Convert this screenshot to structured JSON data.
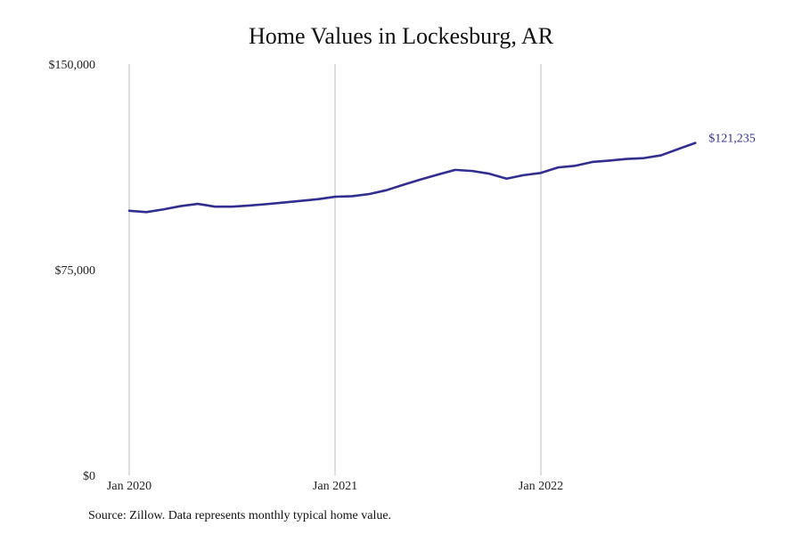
{
  "title": "Home Values in Lockesburg, AR",
  "source": "Source: Zillow. Data represents monthly typical home value.",
  "chart_data": {
    "type": "line",
    "title": "Home Values in Lockesburg, AR",
    "xlabel": "",
    "ylabel": "",
    "ylim": [
      0,
      150000
    ],
    "yticks": [
      {
        "value": 0,
        "label": "$0"
      },
      {
        "value": 75000,
        "label": "$75,000"
      },
      {
        "value": 150000,
        "label": "$150,000"
      }
    ],
    "xticks": [
      {
        "index": 0,
        "label": "Jan 2020"
      },
      {
        "index": 12,
        "label": "Jan 2021"
      },
      {
        "index": 24,
        "label": "Jan 2022"
      }
    ],
    "vertical_gridlines": true,
    "line_color": "#312e8f",
    "end_label": "$121,235",
    "series": [
      {
        "name": "",
        "x": [
          "Jan 2020",
          "Feb 2020",
          "Mar 2020",
          "Apr 2020",
          "May 2020",
          "Jun 2020",
          "Jul 2020",
          "Aug 2020",
          "Sep 2020",
          "Oct 2020",
          "Nov 2020",
          "Dec 2020",
          "Jan 2021",
          "Feb 2021",
          "Mar 2021",
          "Apr 2021",
          "May 2021",
          "Jun 2021",
          "Jul 2021",
          "Aug 2021",
          "Sep 2021",
          "Oct 2021",
          "Nov 2021",
          "Dec 2021",
          "Jan 2022",
          "Feb 2022",
          "Mar 2022",
          "Apr 2022",
          "May 2022",
          "Jun 2022",
          "Jul 2022",
          "Aug 2022",
          "Sep 2022",
          "Oct 2022"
        ],
        "values": [
          96500,
          96000,
          97000,
          98200,
          99000,
          98000,
          98000,
          98400,
          98900,
          99500,
          100100,
          100700,
          101600,
          101800,
          102600,
          104000,
          106000,
          107900,
          109700,
          111400,
          111000,
          110000,
          108200,
          109500,
          110300,
          112300,
          112900,
          114300,
          114800,
          115400,
          115700,
          116700,
          119000,
          121235
        ]
      }
    ]
  }
}
